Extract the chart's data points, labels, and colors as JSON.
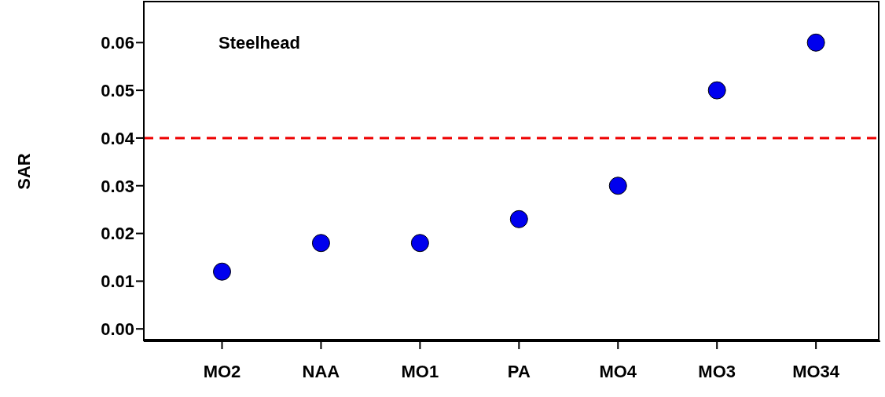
{
  "chart_data": {
    "type": "scatter",
    "ylabel": "SAR",
    "annotations": [
      "Steelhead"
    ],
    "categories": [
      "MO2",
      "NAA",
      "MO1",
      "PA",
      "MO4",
      "MO3",
      "MO34"
    ],
    "series": [
      {
        "color": "#0000ee",
        "values": [
          0.012,
          0.018,
          0.018,
          0.023,
          0.03,
          0.05,
          0.06
        ]
      }
    ],
    "ylim": [
      -0.0026,
      0.0686
    ],
    "yticks": [
      {
        "value": 0,
        "label": "0.00"
      },
      {
        "value": 0.01,
        "label": "0.01"
      },
      {
        "value": 0.02,
        "label": "0.02"
      },
      {
        "value": 0.03,
        "label": "0.03"
      },
      {
        "value": 0.04,
        "label": "0.04"
      },
      {
        "value": 0.05,
        "label": "0.05"
      },
      {
        "value": 0.06,
        "label": "0.06"
      }
    ],
    "ref_lines": [
      {
        "axis": "y",
        "value": 0.04,
        "color": "#ee0000",
        "line_style": "dashed"
      }
    ],
    "grid": false,
    "marker": "circle"
  }
}
